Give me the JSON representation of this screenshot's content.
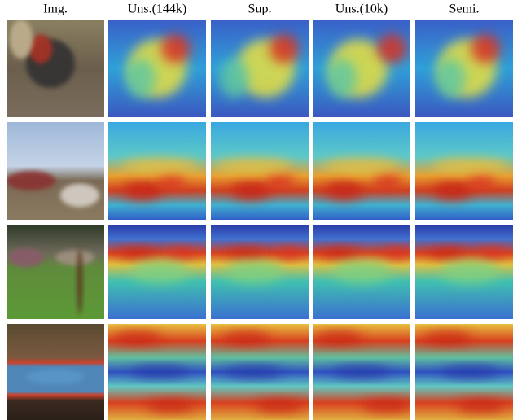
{
  "columns": [
    "Img.",
    "Uns.(144k)",
    "Sup.",
    "Uns.(10k)",
    "Semi."
  ]
}
